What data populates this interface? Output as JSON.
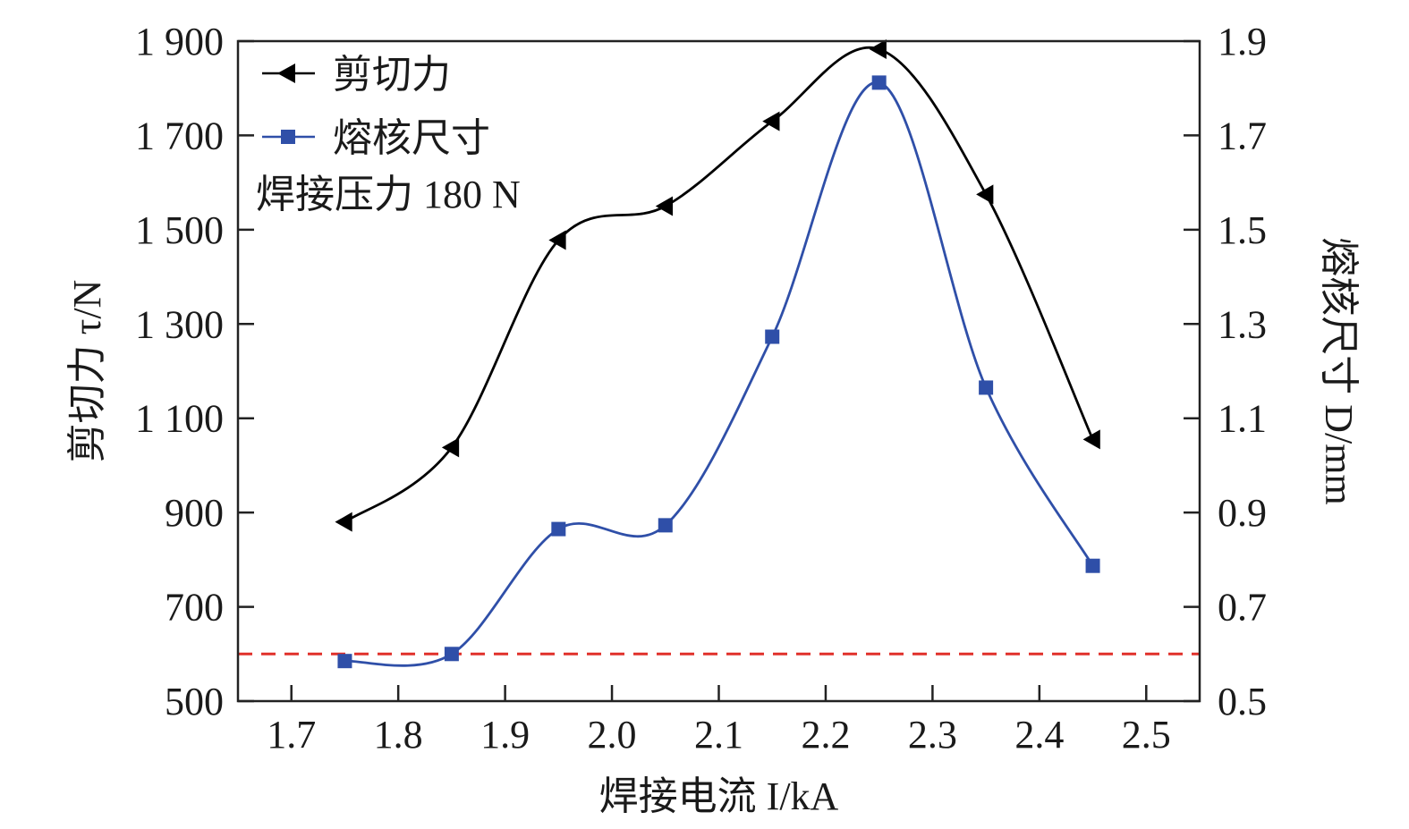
{
  "chart_data": {
    "type": "line",
    "xlabel": "焊接电流 I/kA",
    "ylabel_left": "剪切力 τ/N",
    "ylabel_right": "熔核尺寸 D/mm",
    "x_ticks": [
      "1.7",
      "1.8",
      "1.9",
      "2.0",
      "2.1",
      "2.2",
      "2.3",
      "2.4",
      "2.5"
    ],
    "x_tick_values": [
      1.7,
      1.8,
      1.9,
      2.0,
      2.1,
      2.2,
      2.3,
      2.4,
      2.5
    ],
    "xlim": [
      1.65,
      2.55
    ],
    "y_left_ticks": [
      "500",
      "700",
      "900",
      "1 100",
      "1 300",
      "1 500",
      "1 700",
      "1 900"
    ],
    "y_left_tick_values": [
      500,
      700,
      900,
      1100,
      1300,
      1500,
      1700,
      1900
    ],
    "ylim_left": [
      500,
      1900
    ],
    "y_right_ticks": [
      "0.5",
      "0.7",
      "0.9",
      "1.1",
      "1.3",
      "1.5",
      "1.7",
      "1.9"
    ],
    "y_right_tick_values": [
      0.5,
      0.7,
      0.9,
      1.1,
      1.3,
      1.5,
      1.7,
      1.9
    ],
    "ylim_right": [
      0.5,
      1.9
    ],
    "x": [
      1.75,
      1.85,
      1.95,
      2.05,
      2.15,
      2.25,
      2.35,
      2.45
    ],
    "series": [
      {
        "name": "剪切力",
        "axis": "left",
        "marker": "triangle-left",
        "color": "#000000",
        "values": [
          880,
          1038,
          1478,
          1550,
          1730,
          1883,
          1575,
          1055
        ]
      },
      {
        "name": "熔核尺寸",
        "axis": "right",
        "marker": "square",
        "color": "#2f4fa8",
        "values": [
          0.585,
          0.6,
          0.865,
          0.873,
          1.273,
          1.812,
          1.165,
          0.787
        ]
      }
    ],
    "reference_line": {
      "axis": "right",
      "value": 0.6,
      "color": "#e0302a",
      "style": "dashed"
    },
    "legend_note": "焊接压力 180 N",
    "legend_position": "top-left",
    "grid": false
  }
}
